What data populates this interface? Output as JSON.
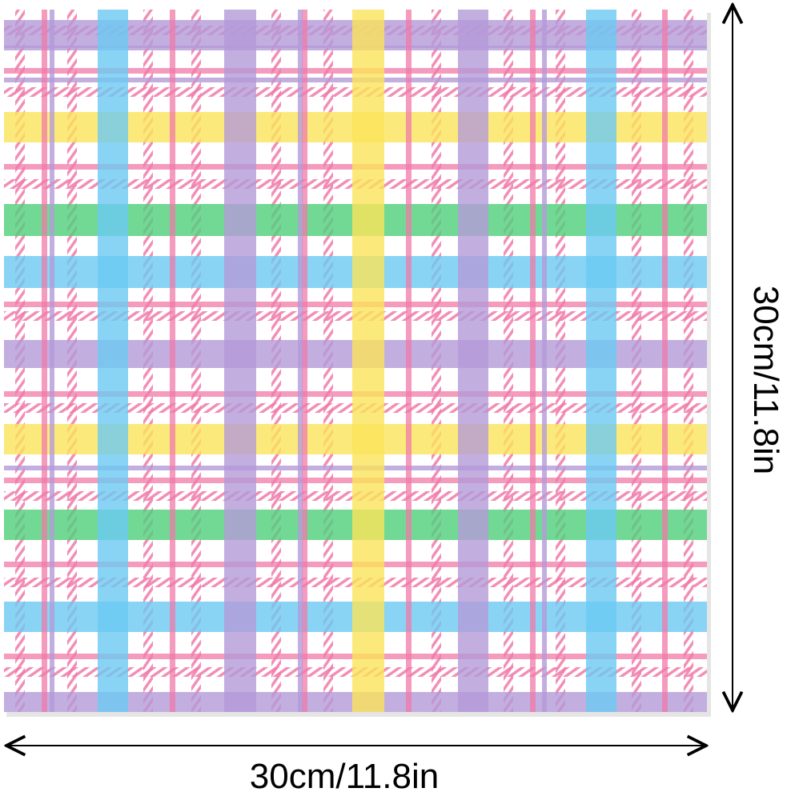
{
  "dimensions": {
    "width": "30cm/11.8in",
    "height": "30cm/11.8in"
  }
}
